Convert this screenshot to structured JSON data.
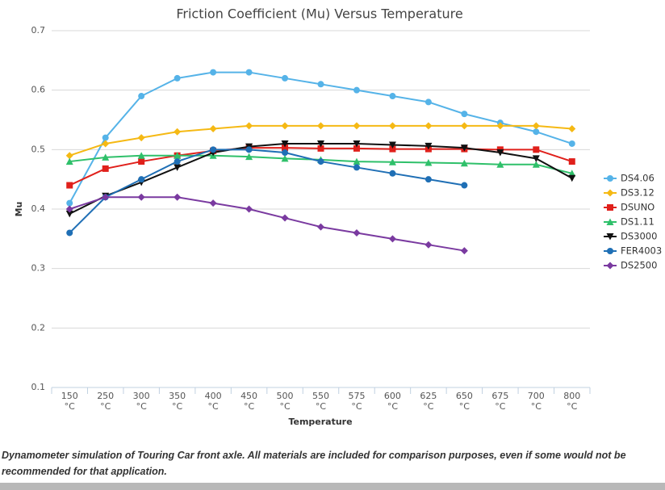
{
  "chart_data": {
    "type": "line",
    "title": "Friction Coefficient (Mu) Versus Temperature",
    "x_label": "Temperature",
    "y_label": "Mu",
    "categories": [
      "150 °C",
      "250 °C",
      "300 °C",
      "350 °C",
      "400 °C",
      "450 °C",
      "500 °C",
      "550 °C",
      "575 °C",
      "600 °C",
      "625 °C",
      "650 °C",
      "675 °C",
      "700 °C",
      "800 °C"
    ],
    "ylim": [
      0.1,
      0.7
    ],
    "yticks": [
      0.1,
      0.2,
      0.3,
      0.4,
      0.5,
      0.6,
      0.7
    ],
    "grid": true,
    "legend": "right",
    "series": [
      {
        "name": "DS4.06",
        "color": "#55b3e8",
        "marker": "circle",
        "values": [
          0.41,
          0.52,
          0.59,
          0.62,
          0.63,
          0.63,
          0.62,
          0.61,
          0.6,
          0.59,
          0.58,
          0.56,
          0.545,
          0.53,
          0.51
        ]
      },
      {
        "name": "DS3.12",
        "color": "#f5b914",
        "marker": "diamond",
        "values": [
          0.49,
          0.51,
          0.52,
          0.53,
          0.535,
          0.54,
          0.54,
          0.54,
          0.54,
          0.54,
          0.54,
          0.54,
          0.54,
          0.54,
          0.535
        ]
      },
      {
        "name": "DSUNO",
        "color": "#e0201b",
        "marker": "square",
        "values": [
          0.44,
          0.468,
          0.48,
          0.49,
          0.498,
          0.503,
          0.503,
          0.502,
          0.502,
          0.501,
          0.501,
          0.501,
          0.5,
          0.5,
          0.48
        ]
      },
      {
        "name": "DS1.11",
        "color": "#2fc06a",
        "marker": "triangle",
        "values": [
          0.48,
          0.487,
          0.49,
          0.49,
          0.49,
          0.488,
          0.485,
          0.483,
          0.48,
          0.479,
          0.478,
          0.477,
          0.475,
          0.475,
          0.46
        ]
      },
      {
        "name": "DS3000",
        "color": "#111111",
        "marker": "triangle-down",
        "values": [
          0.392,
          0.422,
          0.445,
          0.47,
          0.495,
          0.505,
          0.51,
          0.51,
          0.51,
          0.508,
          0.506,
          0.503,
          0.495,
          0.485,
          0.452
        ]
      },
      {
        "name": "FER4003",
        "color": "#1f6fb5",
        "marker": "circle",
        "values": [
          0.36,
          0.42,
          0.45,
          0.48,
          0.5,
          0.5,
          0.495,
          0.48,
          0.47,
          0.46,
          0.45,
          0.44,
          null,
          null,
          null
        ]
      },
      {
        "name": "DS2500",
        "color": "#7a3aa0",
        "marker": "diamond",
        "values": [
          0.4,
          0.42,
          0.42,
          0.42,
          0.41,
          0.4,
          0.385,
          0.37,
          0.36,
          0.35,
          0.34,
          0.33,
          null,
          null,
          null
        ]
      }
    ]
  },
  "caption": "Dynamometer simulation of Touring Car front axle. All materials are included for comparison purposes, even if some would not be recommended for that application."
}
